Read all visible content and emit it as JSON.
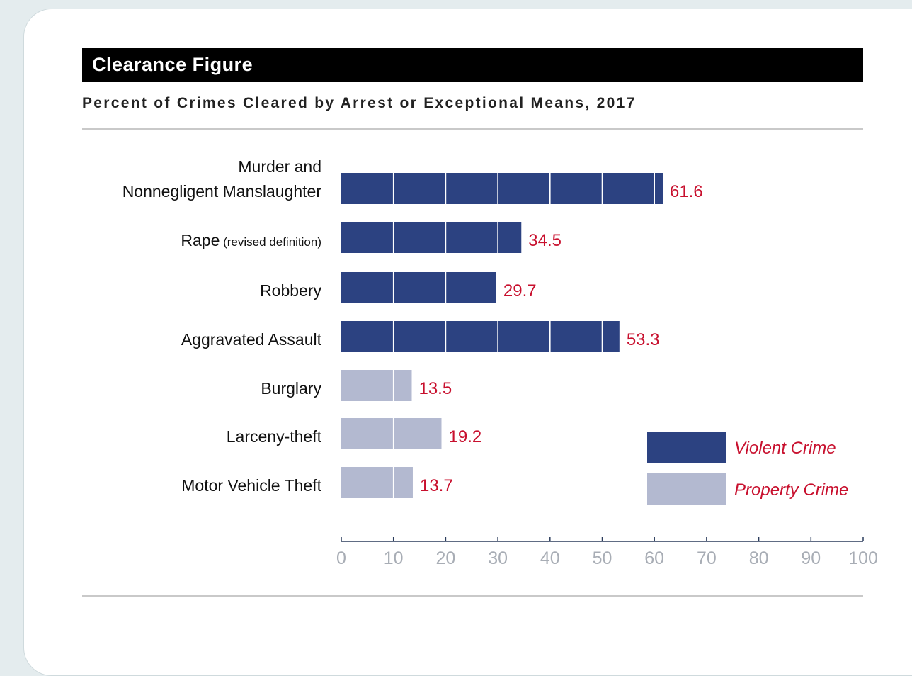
{
  "header": {
    "title": "Clearance Figure",
    "subtitle": "Percent of Crimes Cleared by Arrest or Exceptional Means, 2017"
  },
  "colors": {
    "violent": "#2c4281",
    "property": "#b3b9d0",
    "value_label": "#c8102e",
    "axis": "#2b3c5c",
    "tick_label": "#a8adb5"
  },
  "chart_data": {
    "type": "bar",
    "orientation": "horizontal",
    "categories": [
      [
        "Murder and",
        "Nonnegligent Manslaughter"
      ],
      [
        "Rape"
      ],
      [
        "Robbery"
      ],
      [
        "Aggravated Assault"
      ],
      [
        "Burglary"
      ],
      [
        "Larceny-theft"
      ],
      [
        "Motor Vehicle Theft"
      ]
    ],
    "category_notes": [
      "",
      "(revised definition)",
      "",
      "",
      "",
      "",
      ""
    ],
    "values": [
      61.6,
      34.5,
      29.7,
      53.3,
      13.5,
      19.2,
      13.7
    ],
    "value_labels": [
      "61.6",
      "34.5",
      "29.7",
      "53.3",
      "13.5",
      "19.2",
      "13.7"
    ],
    "groups": [
      "Violent Crime",
      "Violent Crime",
      "Violent Crime",
      "Violent Crime",
      "Property Crime",
      "Property Crime",
      "Property Crime"
    ],
    "legend": [
      "Violent Crime",
      "Property Crime"
    ],
    "legend_placement": "bottom-right",
    "xlim": [
      0,
      100
    ],
    "xticks": [
      0,
      10,
      20,
      30,
      40,
      50,
      60,
      70,
      80,
      90,
      100
    ],
    "xtick_labels": [
      "0",
      "10",
      "20",
      "30",
      "40",
      "50",
      "60",
      "70",
      "80",
      "90",
      "100"
    ],
    "gridlines_inside_bars": true
  }
}
